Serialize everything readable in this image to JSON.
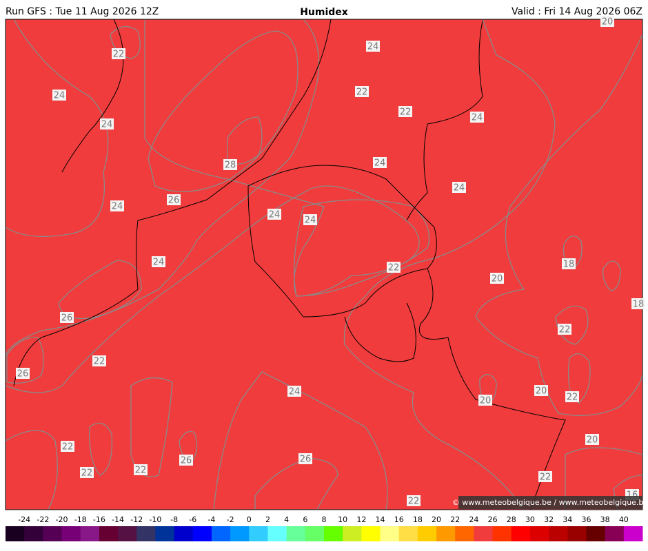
{
  "header": {
    "run": "Run GFS : Tue 11 Aug 2026 12Z",
    "title": "Humidex",
    "valid": "Valid : Fri 14 Aug 2026 06Z"
  },
  "map": {
    "contour_labels": [
      22,
      24,
      24,
      28,
      26,
      24,
      24,
      22,
      22,
      24,
      24,
      24,
      24,
      24,
      24,
      22,
      18,
      20,
      18,
      26,
      22,
      22,
      26,
      24,
      20,
      22,
      20,
      20,
      22,
      26,
      26,
      22,
      22,
      22,
      22,
      16,
      20
    ],
    "credit": "© www.meteobelgique.be / www.meteobelgique.be"
  },
  "legend": {
    "ticks": [
      -24,
      -22,
      -20,
      -18,
      -16,
      -14,
      -12,
      -10,
      -8,
      -6,
      -4,
      -2,
      0,
      2,
      4,
      6,
      8,
      10,
      12,
      14,
      16,
      18,
      20,
      22,
      24,
      26,
      28,
      30,
      32,
      34,
      36,
      38,
      40
    ],
    "colors": [
      "#1a0020",
      "#33003a",
      "#550055",
      "#770077",
      "#881888",
      "#660033",
      "#551144",
      "#333366",
      "#003399",
      "#0000cc",
      "#0000ff",
      "#0066ff",
      "#0099ff",
      "#33ccff",
      "#66ffff",
      "#66ff99",
      "#66ff66",
      "#66ff00",
      "#ccee22",
      "#ffff00",
      "#ffff88",
      "#ffdd44",
      "#ffcc00",
      "#ff9900",
      "#ff6600",
      "#f03c3c",
      "#ff3300",
      "#ff0000",
      "#dd0000",
      "#bb0000",
      "#990000",
      "#660000",
      "#880055",
      "#cc00cc"
    ]
  }
}
